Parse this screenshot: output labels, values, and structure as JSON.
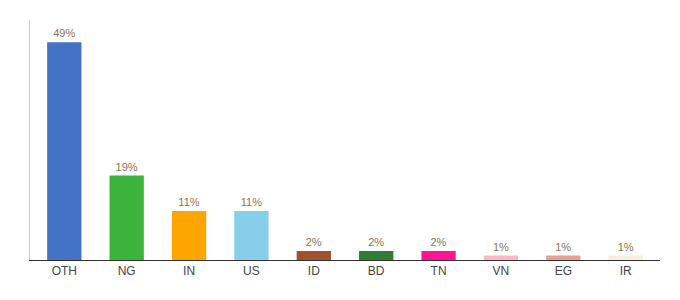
{
  "chart_data": {
    "type": "bar",
    "categories": [
      "OTH",
      "NG",
      "IN",
      "US",
      "ID",
      "BD",
      "TN",
      "VN",
      "EG",
      "IR"
    ],
    "values": [
      49,
      19,
      11,
      11,
      2,
      2,
      2,
      1,
      1,
      1
    ],
    "value_labels": [
      "49%",
      "19%",
      "11%",
      "11%",
      "2%",
      "2%",
      "2%",
      "1%",
      "1%",
      "1%"
    ],
    "colors": [
      "#4472C4",
      "#3CB43C",
      "#FFA500",
      "#87CEEB",
      "#A0522D",
      "#2E7D32",
      "#FF1493",
      "#FFB6C1",
      "#E8A090",
      "#F5F0DC"
    ],
    "ylim": [
      0,
      54
    ],
    "data_labels": true,
    "tick_labels": "x",
    "grid": false
  }
}
